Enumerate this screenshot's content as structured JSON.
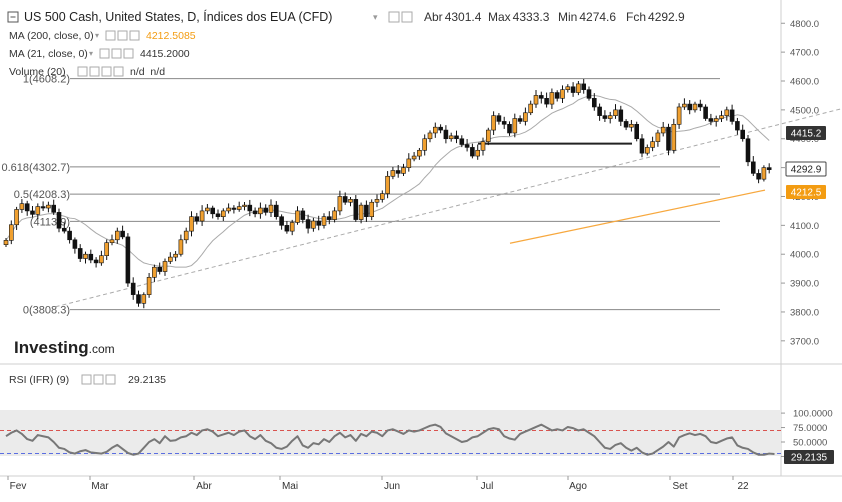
{
  "header": {
    "title": "US 500 Cash, United States, D, Índices dos EUA (CFD)",
    "ohlc": [
      {
        "label": "Abr",
        "value": "4301.4"
      },
      {
        "label": "Max",
        "value": "4333.3"
      },
      {
        "label": "Min",
        "value": "4274.6"
      },
      {
        "label": "Fch",
        "value": "4292.9"
      }
    ]
  },
  "indicators": [
    {
      "label": "MA (200, close, 0)",
      "value": "4212.5085",
      "color": "#f39c12"
    },
    {
      "label": "MA (21, close, 0)",
      "value": "4415.2000",
      "color": "#333333"
    },
    {
      "label": "Volume (20)",
      "value": "n/d  n/d",
      "color": "#333333"
    }
  ],
  "logo": {
    "brand": "Investing",
    "suffix": ".com"
  },
  "colors": {
    "up": "#f0a030",
    "down": "#111111",
    "ma200": "#f7a83e",
    "ma21": "#aaaaaa",
    "rsi_line": "#777777",
    "overbought": "#d9534f",
    "oversold": "#5b6ee1",
    "badge_dark": "#333333",
    "badge_orange": "#f39c12"
  },
  "badges": {
    "ma21": "4415.2",
    "last": "4292.9",
    "ma200": "4212.5",
    "rsi": "29.2135"
  },
  "rsi_panel": {
    "label": "RSI (IFR) (9)",
    "value": "29.2135"
  },
  "chart_data": [
    {
      "type": "candlestick",
      "price_ylim": [
        3640,
        4850
      ],
      "y_ticks": [
        "4800.0",
        "4700.0",
        "4600.0",
        "4500.0",
        "4400.0",
        "4300.0",
        "4200.0",
        "4100.0",
        "4000.0",
        "3900.0",
        "3800.0",
        "3700.0"
      ],
      "x_ticks": [
        "Fev",
        "Mar",
        "Abr",
        "Mai",
        "Jun",
        "Jul",
        "Ago",
        "Set",
        "22"
      ],
      "fib_levels": [
        {
          "label": "1(4608.2)",
          "value": 4608.2
        },
        {
          "label": "0.618(4302.7)",
          "value": 4302.7
        },
        {
          "label": "0.5(4208.3)",
          "value": 4208.3
        },
        {
          "label": "(4113.9)",
          "value": 4113.9
        },
        {
          "label": "0(3808.3)",
          "value": 3808.3
        }
      ],
      "support_line": {
        "x": [
          118,
          152
        ],
        "value": 4383
      },
      "trendline": {
        "x": [
          32,
          181
        ],
        "y": [
          3818,
          4612
        ]
      },
      "ma200_line": {
        "x": [
          126,
          196
        ],
        "y": [
          4038,
          4222
        ]
      },
      "close_series": [
        4048,
        4102,
        4155,
        4175,
        4150,
        4138,
        4165,
        4160,
        4170,
        4145,
        4090,
        4080,
        4050,
        4020,
        3985,
        4000,
        3980,
        3970,
        3995,
        4040,
        4050,
        4080,
        4060,
        3900,
        3860,
        3830,
        3860,
        3920,
        3955,
        3940,
        3975,
        3990,
        4000,
        4050,
        4080,
        4130,
        4115,
        4150,
        4160,
        4140,
        4130,
        4150,
        4160,
        4155,
        4165,
        4170,
        4150,
        4140,
        4160,
        4145,
        4170,
        4130,
        4100,
        4080,
        4110,
        4150,
        4120,
        4090,
        4115,
        4100,
        4130,
        4120,
        4150,
        4200,
        4180,
        4190,
        4120,
        4170,
        4130,
        4180,
        4190,
        4210,
        4270,
        4290,
        4280,
        4300,
        4330,
        4340,
        4360,
        4400,
        4420,
        4440,
        4430,
        4400,
        4410,
        4400,
        4380,
        4370,
        4340,
        4360,
        4390,
        4430,
        4480,
        4460,
        4450,
        4420,
        4470,
        4460,
        4490,
        4520,
        4550,
        4540,
        4520,
        4560,
        4540,
        4570,
        4580,
        4560,
        4590,
        4570,
        4540,
        4510,
        4480,
        4470,
        4480,
        4500,
        4460,
        4440,
        4450,
        4400,
        4350,
        4370,
        4390,
        4420,
        4440,
        4360,
        4450,
        4510,
        4520,
        4500,
        4520,
        4510,
        4470,
        4460,
        4470,
        4480,
        4500,
        4460,
        4430,
        4400,
        4320,
        4280,
        4260,
        4300,
        4292.9
      ],
      "rsi_ylim": [
        0,
        100
      ],
      "rsi_ticks": [
        "100.0000",
        "75.0000",
        "50.0000",
        "25.0000"
      ],
      "rsi_levels": {
        "overbought": 70,
        "oversold": 30
      },
      "rsi_series": [
        60,
        66,
        70,
        64,
        55,
        52,
        62,
        60,
        58,
        50,
        40,
        38,
        32,
        30,
        34,
        36,
        32,
        31,
        30,
        33,
        40,
        45,
        38,
        31,
        28,
        30,
        40,
        50,
        55,
        48,
        60,
        52,
        53,
        58,
        60,
        66,
        62,
        70,
        72,
        68,
        60,
        63,
        66,
        62,
        68,
        70,
        60,
        55,
        62,
        52,
        48,
        40,
        38,
        42,
        52,
        60,
        44,
        40,
        48,
        46,
        55,
        50,
        60,
        66,
        58,
        62,
        52,
        64,
        60,
        68,
        66,
        60,
        70,
        72,
        68,
        64,
        70,
        68,
        70,
        74,
        78,
        80,
        76,
        65,
        60,
        55,
        50,
        52,
        58,
        60,
        66,
        72,
        74,
        72,
        60,
        56,
        54,
        64,
        68,
        72,
        76,
        80,
        75,
        70,
        72,
        70,
        76,
        74,
        70,
        72,
        66,
        60,
        50,
        40,
        38,
        45,
        48,
        40,
        35,
        40,
        32,
        28,
        30,
        36,
        42,
        50,
        42,
        58,
        62,
        65,
        62,
        64,
        60,
        50,
        48,
        52,
        56,
        58,
        44,
        40,
        38,
        32,
        28,
        28,
        30,
        29.2135
      ]
    }
  ]
}
